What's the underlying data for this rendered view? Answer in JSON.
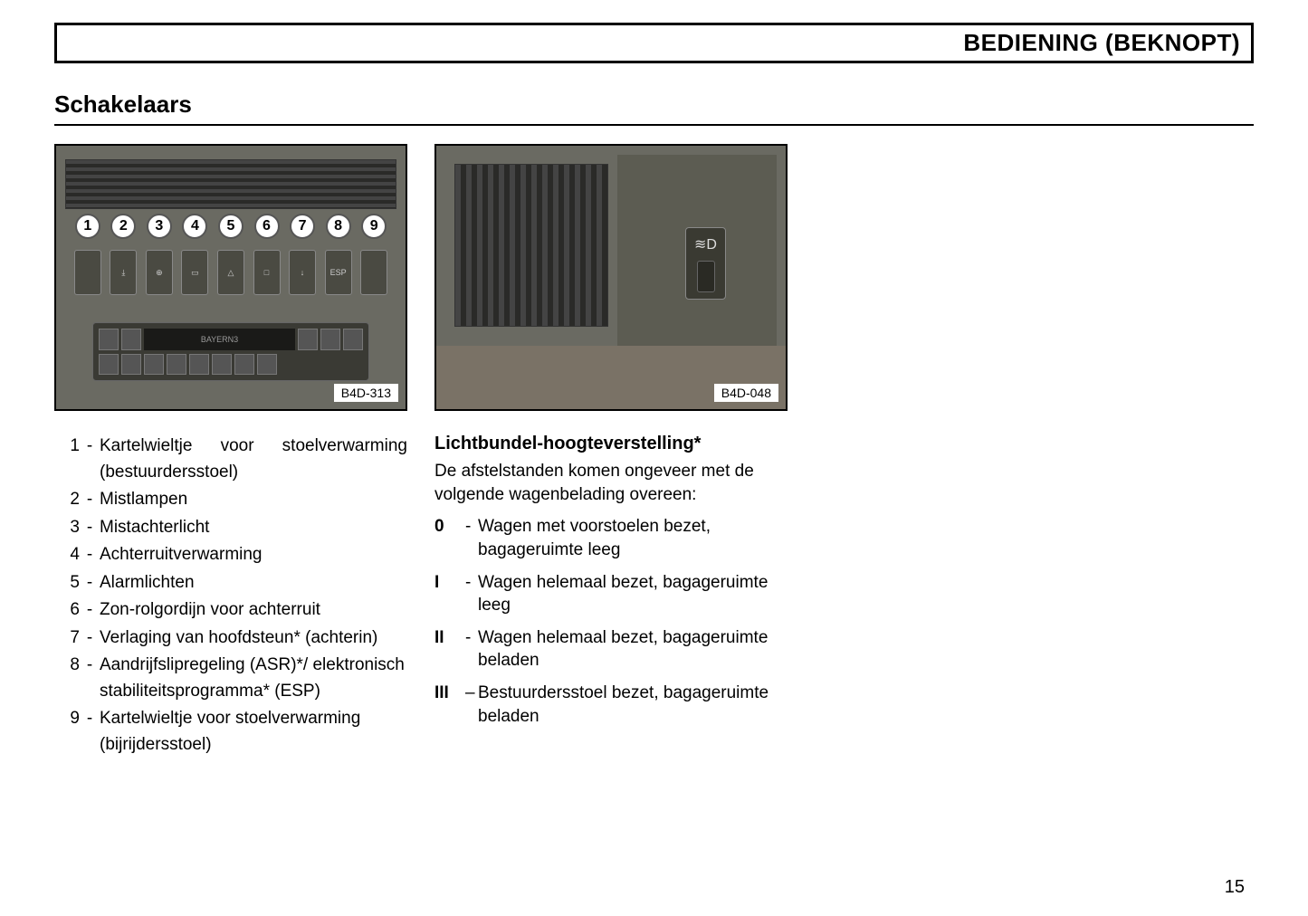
{
  "header": {
    "title": "BEDIENING (BEKNOPT)"
  },
  "section": {
    "title": "Schakelaars"
  },
  "figure1": {
    "label": "B4D-313",
    "callouts": [
      "1",
      "2",
      "3",
      "4",
      "5",
      "6",
      "7",
      "8",
      "9"
    ],
    "switch_glyphs": [
      "",
      "⤓",
      "⊕",
      "▭",
      "△",
      "□",
      "↓",
      "ESP",
      ""
    ],
    "radio_text": "BAYERN3",
    "bg_color": "#6a6a62"
  },
  "figure2": {
    "label": "B4D-048",
    "icon": "≋D",
    "bg_color": "#6a6a62"
  },
  "switch_list": [
    {
      "n": "1",
      "d": "Kartelwieltje voor stoelverwarming (bestuurdersstoel)"
    },
    {
      "n": "2",
      "d": "Mistlampen"
    },
    {
      "n": "3",
      "d": "Mistachterlicht"
    },
    {
      "n": "4",
      "d": "Achterruitverwarming"
    },
    {
      "n": "5",
      "d": "Alarmlichten"
    },
    {
      "n": "6",
      "d": "Zon-rolgordijn voor achterruit"
    },
    {
      "n": "7",
      "d": "Verlaging van hoofdsteun* (achterin)"
    },
    {
      "n": "8",
      "d": "Aandrijfslipregeling (ASR)*/ elektronisch stabiliteitsprogramma* (ESP)"
    },
    {
      "n": "9",
      "d": "Kartelwieltje voor stoelverwarming (bijrijdersstoel)"
    }
  ],
  "right": {
    "heading": "Lichtbundel-hoogteverstelling*",
    "intro": "De afstelstanden komen ongeveer met de volgende wagenbelading overeen:",
    "positions": [
      {
        "p": "0",
        "d": "Wagen met voorstoelen bezet, bagageruimte leeg"
      },
      {
        "p": "I",
        "d": "Wagen helemaal bezet, bagageruimte leeg"
      },
      {
        "p": "II",
        "d": "Wagen helemaal bezet, bagageruimte beladen"
      },
      {
        "p": "III",
        "d": "Bestuurdersstoel bezet, bagageruimte beladen"
      }
    ]
  },
  "page_number": "15"
}
